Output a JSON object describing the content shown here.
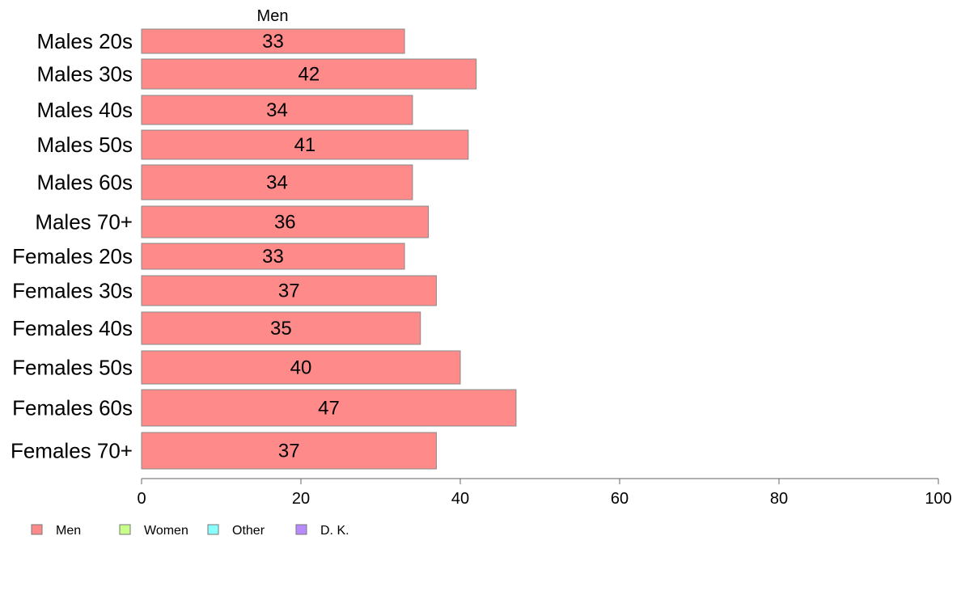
{
  "chart_data": {
    "type": "bar",
    "orientation": "horizontal",
    "series_header": "Men",
    "categories": [
      "Males 20s",
      "Males 30s",
      "Males 40s",
      "Males 50s",
      "Males 60s",
      "Males 70+",
      "Females 20s",
      "Females 30s",
      "Females 40s",
      "Females 50s",
      "Females 60s",
      "Females 70+"
    ],
    "series": [
      {
        "name": "Men",
        "values": [
          33,
          42,
          34,
          41,
          34,
          36,
          33,
          37,
          35,
          40,
          47,
          37
        ]
      }
    ],
    "data_labels": [
      "33",
      "42",
      "34",
      "41",
      "34",
      "36",
      "33",
      "37",
      "35",
      "40",
      "47",
      "37"
    ],
    "xlim": [
      0,
      100
    ],
    "x_ticks": [
      0,
      20,
      40,
      60,
      80,
      100
    ],
    "x_tick_labels": [
      "0",
      "20",
      "40",
      "60",
      "80",
      "100"
    ],
    "grid": false,
    "legend": {
      "placement": "bottom-left",
      "entries": [
        {
          "label": "Men",
          "color": "#ff8a8a"
        },
        {
          "label": "Women",
          "color": "#c8ff8a"
        },
        {
          "label": "Other",
          "color": "#8affff"
        },
        {
          "label": "D. K.",
          "color": "#b88aff"
        }
      ]
    },
    "bar_color": "#ff8a8a",
    "bar_border_color": "#888888"
  }
}
